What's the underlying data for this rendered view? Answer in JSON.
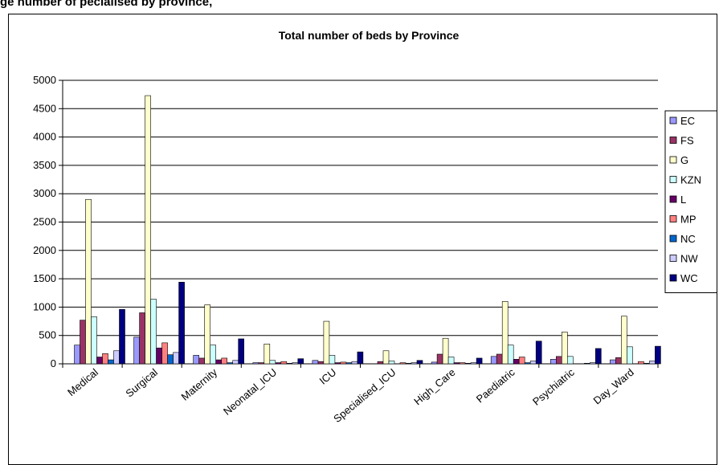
{
  "page_heading": "ge       number of   pecialised by province,",
  "chart_data": {
    "type": "bar",
    "title": "Total number of beds by Province",
    "xlabel": "",
    "ylabel": "",
    "ylim": [
      0,
      5000
    ],
    "yticks": [
      0,
      500,
      1000,
      1500,
      2000,
      2500,
      3000,
      3500,
      4000,
      4500,
      5000
    ],
    "grid": true,
    "legend_placement": "right",
    "categories": [
      "Medical",
      "Surgical",
      "Maternity",
      "Neonatal_ICU",
      "ICU",
      "Specialised_ICU",
      "High_Care",
      "Paediatric",
      "Psychiatric",
      "Day_Ward"
    ],
    "series": [
      {
        "name": "EC",
        "color": "#9999ff",
        "values": [
          330,
          470,
          150,
          20,
          60,
          0,
          30,
          130,
          80,
          70
        ]
      },
      {
        "name": "FS",
        "color": "#993366",
        "values": [
          770,
          900,
          100,
          20,
          40,
          40,
          170,
          170,
          130,
          110
        ]
      },
      {
        "name": "G",
        "color": "#ffffcc",
        "values": [
          2900,
          4730,
          1040,
          350,
          750,
          230,
          450,
          1100,
          560,
          840
        ]
      },
      {
        "name": "KZN",
        "color": "#ccffff",
        "values": [
          830,
          1140,
          330,
          60,
          150,
          50,
          120,
          330,
          130,
          300
        ]
      },
      {
        "name": "L",
        "color": "#660066",
        "values": [
          120,
          280,
          70,
          20,
          20,
          0,
          20,
          80,
          0,
          0
        ]
      },
      {
        "name": "MP",
        "color": "#ff8080",
        "values": [
          180,
          370,
          100,
          40,
          30,
          20,
          20,
          120,
          0,
          40
        ]
      },
      {
        "name": "NC",
        "color": "#0066cc",
        "values": [
          70,
          160,
          20,
          10,
          20,
          10,
          10,
          20,
          10,
          10
        ]
      },
      {
        "name": "NW",
        "color": "#ccccff",
        "values": [
          230,
          200,
          60,
          20,
          40,
          20,
          20,
          50,
          20,
          50
        ]
      },
      {
        "name": "WC",
        "color": "#000080",
        "values": [
          960,
          1440,
          440,
          90,
          210,
          60,
          100,
          400,
          270,
          310
        ]
      }
    ]
  }
}
